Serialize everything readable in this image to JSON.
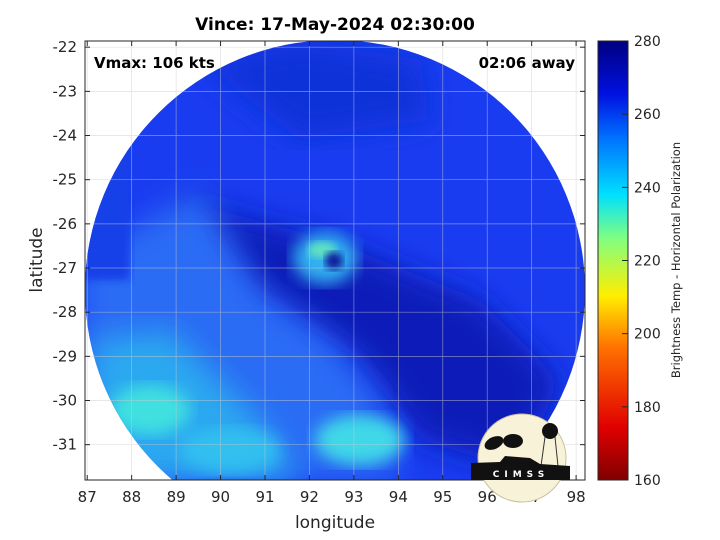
{
  "title": "Vince: 17-May-2024 02:30:00",
  "annotations": {
    "vmax": "Vmax: 106 kts",
    "time_away": "02:06 away"
  },
  "axes": {
    "xlabel": "longitude",
    "ylabel": "latitude",
    "xticks": [
      "87",
      "88",
      "89",
      "90",
      "91",
      "92",
      "93",
      "94",
      "95",
      "96",
      "97",
      "98"
    ],
    "yticks": [
      "-22",
      "-23",
      "-24",
      "-25",
      "-26",
      "-27",
      "-28",
      "-29",
      "-30",
      "-31"
    ],
    "xlim": [
      86.95,
      98.2
    ],
    "ylim": [
      -31.8,
      -21.86
    ],
    "grid": true
  },
  "colorbar": {
    "label": "Brightness Temp - Horizontal Polarization",
    "ticks": [
      "160",
      "180",
      "200",
      "220",
      "240",
      "260",
      "280"
    ],
    "range": [
      160,
      280
    ],
    "colormap": "jet"
  },
  "image": {
    "description_type": "microwave brightness temperature swath",
    "eye_center": {
      "lon": 92.5,
      "lat": -26.6
    }
  },
  "logo": {
    "text": "CIMSS"
  }
}
